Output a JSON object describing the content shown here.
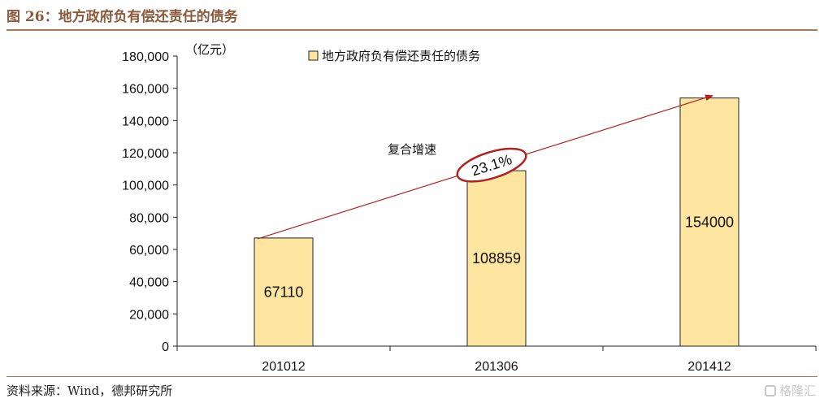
{
  "figure": {
    "title": "图 26：地方政府负有偿还责任的债务",
    "source": "资料来源：Wind，德邦研究所",
    "watermark": "格隆汇"
  },
  "chart_data": {
    "type": "bar",
    "categories": [
      "201012",
      "201306",
      "201412"
    ],
    "series": [
      {
        "name": "地方政府负有偿还责任的债务",
        "values": [
          67110,
          108859,
          154000
        ]
      }
    ],
    "data_labels": [
      "67110",
      "108859",
      "154000"
    ],
    "unit": "（亿元）",
    "ylim": [
      0,
      180000
    ],
    "yticks": [
      0,
      20000,
      40000,
      60000,
      80000,
      100000,
      120000,
      140000,
      160000,
      180000
    ],
    "ytick_labels": [
      "0",
      "20,000",
      "40,000",
      "60,000",
      "80,000",
      "100,000",
      "120,000",
      "140,000",
      "160,000",
      "180,000"
    ],
    "legend_position": "top-center",
    "grid": false,
    "annotation": {
      "label": "复合增速",
      "value": "23.1%",
      "from_category": "201012",
      "to_category": "201412"
    },
    "colors": {
      "bar_fill": "#FFE6A0",
      "bar_stroke": "#222222",
      "arrow": "#B22222"
    }
  }
}
